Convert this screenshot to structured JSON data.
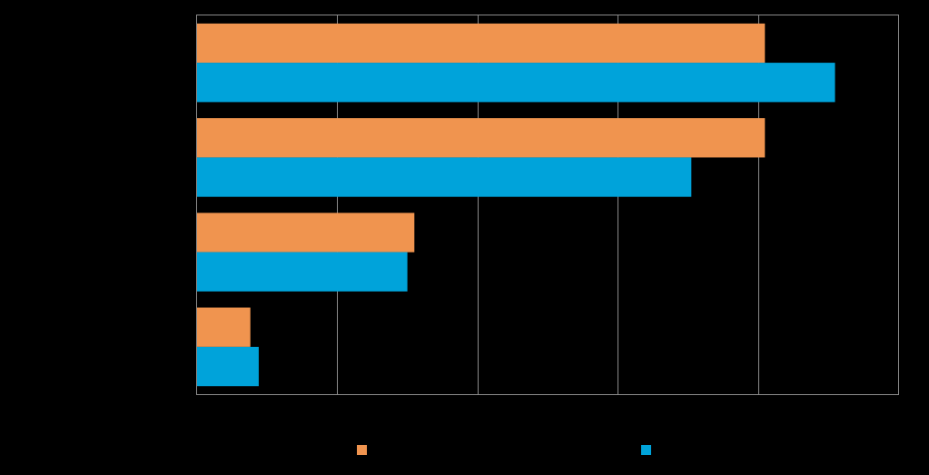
{
  "chart_data": {
    "type": "bar",
    "orientation": "horizontal",
    "title": "",
    "xlabel": "",
    "ylabel": "",
    "categories": [
      "",
      "",
      "",
      ""
    ],
    "series": [
      {
        "color": "#f0944f",
        "values": [
          0.81,
          0.81,
          0.31,
          0.076
        ]
      },
      {
        "color": "#00a3da",
        "values": [
          0.91,
          0.705,
          0.3,
          0.088
        ]
      }
    ],
    "xlim": [
      0,
      1.0
    ],
    "x_gridlines": [
      0.2,
      0.4,
      0.6,
      0.8
    ],
    "grid": true,
    "legend": "bottom"
  }
}
